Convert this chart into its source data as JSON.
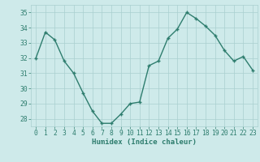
{
  "xlabel": "Humidex (Indice chaleur)",
  "ylabel": "",
  "x": [
    0,
    1,
    2,
    3,
    4,
    5,
    6,
    7,
    8,
    9,
    10,
    11,
    12,
    13,
    14,
    15,
    16,
    17,
    18,
    19,
    20,
    21,
    22,
    23
  ],
  "y": [
    32.0,
    33.7,
    33.2,
    31.8,
    31.0,
    29.7,
    28.5,
    27.7,
    27.7,
    28.3,
    29.0,
    29.1,
    31.5,
    31.8,
    33.3,
    33.9,
    35.0,
    34.6,
    34.1,
    33.5,
    32.5,
    31.8,
    32.1,
    31.2
  ],
  "line_color": "#2e7d6e",
  "marker": "+",
  "marker_size": 3,
  "line_width": 1.0,
  "bg_color": "#ceeaea",
  "grid_color": "#aacfcf",
  "tick_color": "#2e7d6e",
  "label_color": "#2e7d6e",
  "ylim": [
    27.5,
    35.5
  ],
  "yticks": [
    28,
    29,
    30,
    31,
    32,
    33,
    34,
    35
  ],
  "xticks": [
    0,
    1,
    2,
    3,
    4,
    5,
    6,
    7,
    8,
    9,
    10,
    11,
    12,
    13,
    14,
    15,
    16,
    17,
    18,
    19,
    20,
    21,
    22,
    23
  ],
  "xlabel_fontsize": 6.5,
  "tick_fontsize": 5.8,
  "title_fontsize": 7
}
